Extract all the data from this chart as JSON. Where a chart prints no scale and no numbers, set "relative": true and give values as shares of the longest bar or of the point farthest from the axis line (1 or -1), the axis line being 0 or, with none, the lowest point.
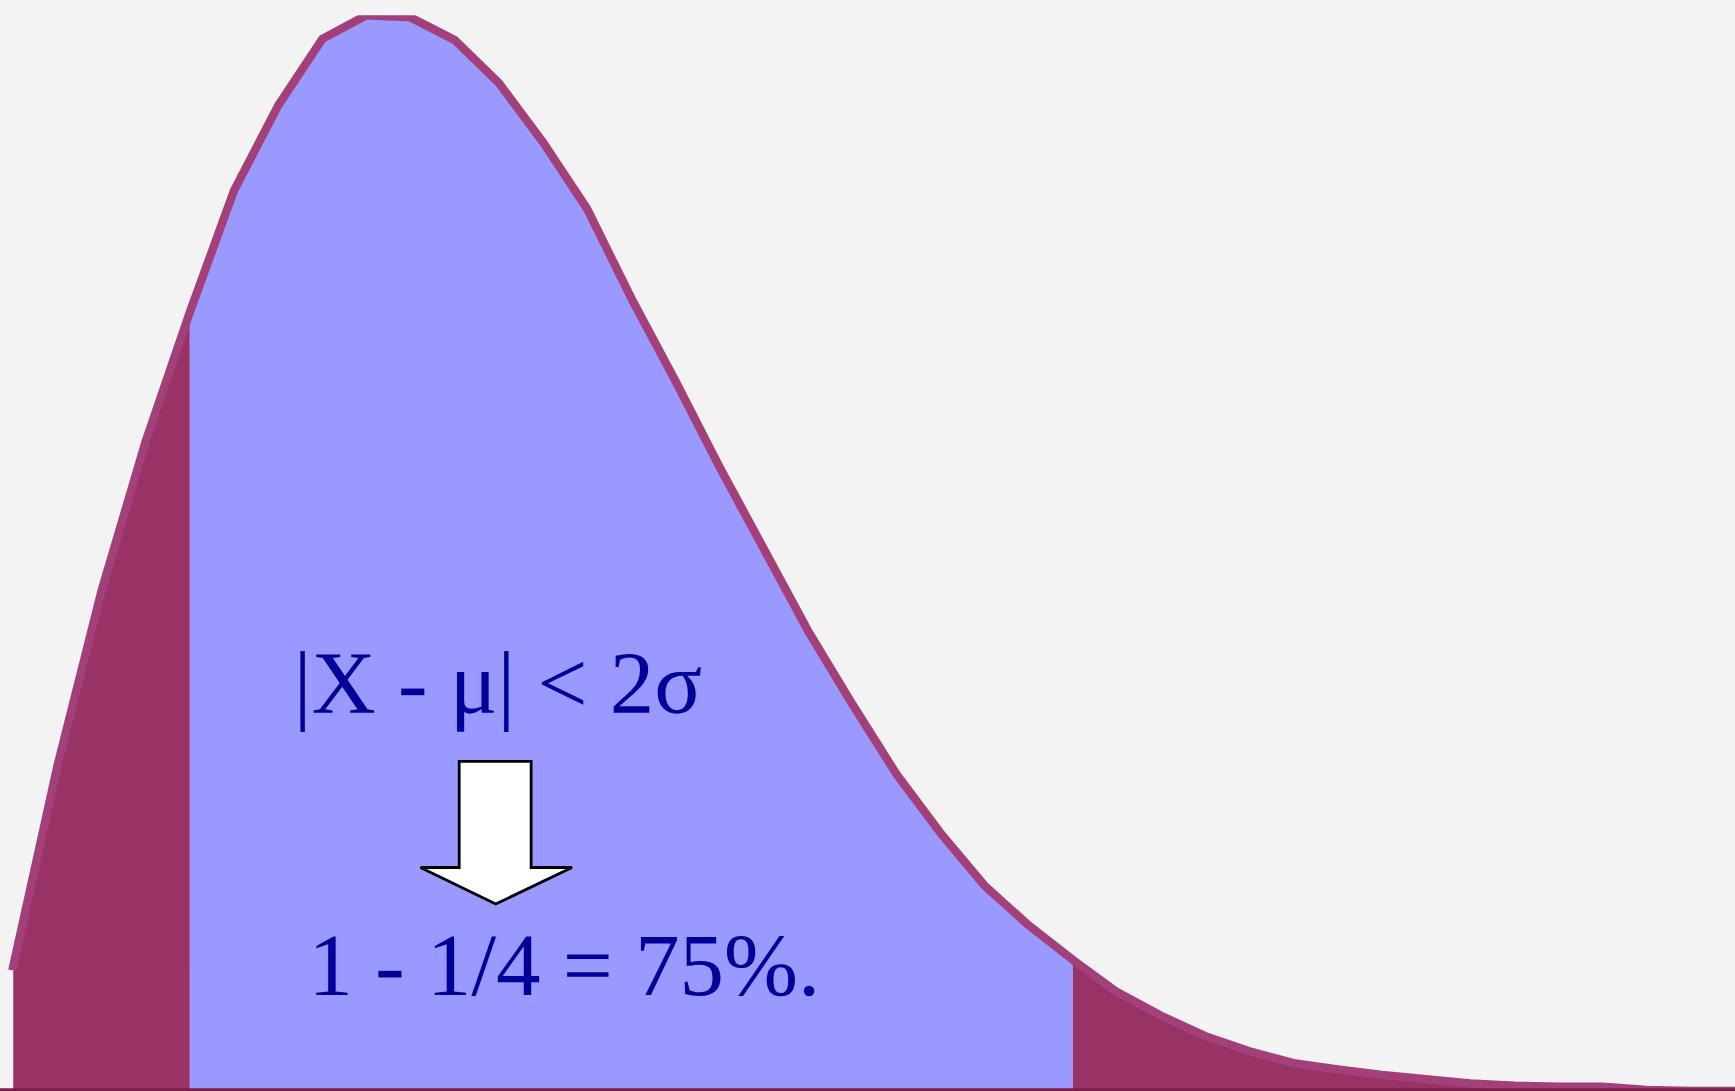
{
  "chart_data": {
    "type": "area",
    "relative": true,
    "categories": [
      null,
      null,
      null,
      null,
      null,
      null,
      null,
      null,
      null,
      null,
      null,
      null,
      null,
      null,
      null,
      null,
      null,
      null,
      null,
      null,
      null,
      null,
      null,
      null,
      null,
      null,
      null,
      null,
      null,
      null,
      null,
      null,
      null,
      null,
      null,
      null,
      null,
      null,
      null,
      null
    ],
    "series": [
      {
        "color": "#993366",
        "values": [
          0.116,
          0.302,
          0.465,
          0.604,
          0.724,
          null,
          null,
          null,
          null,
          null,
          null,
          null,
          null,
          null,
          null,
          null,
          null,
          null,
          null,
          null,
          null,
          null,
          null,
          null,
          null,
          null,
          null,
          null,
          null,
          null,
          null,
          null,
          null,
          null,
          null,
          null,
          null,
          null,
          null,
          null
        ]
      },
      {
        "color": "#9999ff",
        "values": [
          null,
          null,
          null,
          null,
          0.724,
          0.837,
          0.916,
          0.978,
          1.0,
          0.998,
          0.977,
          0.937,
          0.882,
          0.82,
          0.737,
          0.66,
          0.58,
          0.504,
          0.428,
          0.36,
          0.295,
          0.24,
          0.191,
          0.154,
          0.122,
          null,
          null,
          null,
          null,
          null,
          null,
          null,
          null,
          null,
          null,
          null,
          null,
          null,
          null,
          null
        ]
      },
      {
        "type": "line",
        "color": "#a3407a",
        "values": [
          0.116,
          0.302,
          0.465,
          0.604,
          0.724,
          0.837,
          0.916,
          0.978,
          1.0,
          0.998,
          0.977,
          0.937,
          0.882,
          0.82,
          0.737,
          0.66,
          0.58,
          0.504,
          0.428,
          0.36,
          0.295,
          0.24,
          0.191,
          0.154,
          0.122,
          0.092,
          0.07,
          0.051,
          0.037,
          0.026,
          0.02,
          0.015,
          0.011,
          0.007,
          0.005,
          0.004,
          0.004,
          0.001,
          0,
          0
        ]
      },
      {
        "color": "#993366",
        "values": [
          null,
          null,
          null,
          null,
          null,
          null,
          null,
          null,
          null,
          null,
          null,
          null,
          null,
          null,
          null,
          null,
          null,
          null,
          null,
          null,
          null,
          null,
          null,
          null,
          0.122,
          0.092,
          0.07,
          0.051,
          0.037,
          0.026,
          0.02,
          0.015,
          0.011,
          0.007,
          0.005,
          0.004,
          0.004,
          0.001,
          0,
          0
        ]
      }
    ],
    "annotations": [
      "|X - μ| < 2σ",
      "1 - 1/4 = 75%."
    ]
  }
}
